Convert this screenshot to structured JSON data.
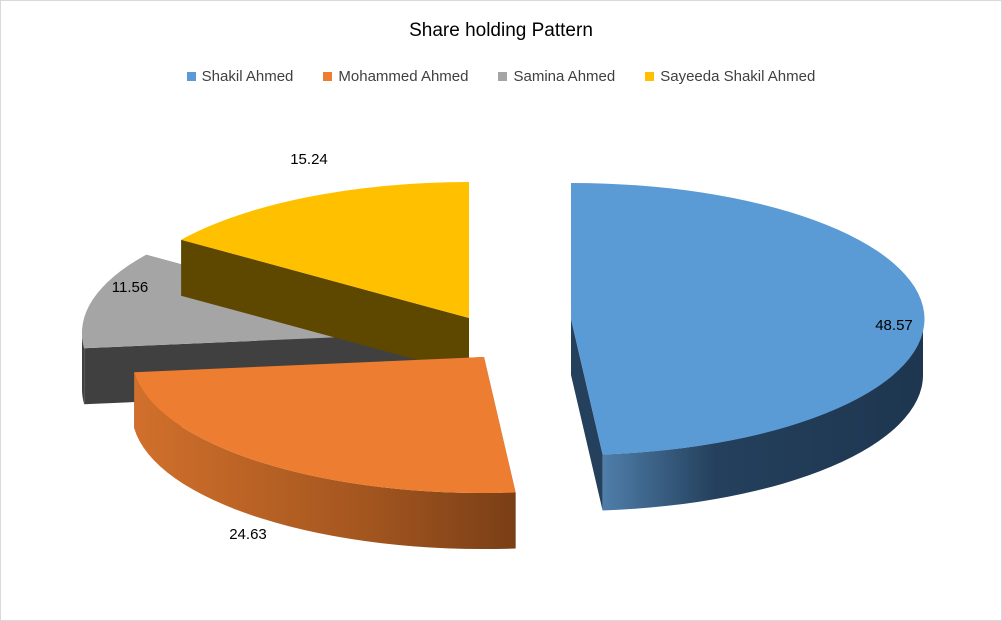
{
  "chart_data": {
    "type": "pie",
    "title": "Share holding Pattern",
    "categories": [
      "Shakil Ahmed",
      "Mohammed Ahmed",
      "Samina Ahmed",
      "Sayeeda Shakil Ahmed"
    ],
    "values": [
      48.57,
      24.63,
      11.56,
      15.24
    ],
    "data_labels": [
      "48.57",
      "24.63",
      "11.56",
      "15.24"
    ],
    "colors": [
      "#5B9BD5",
      "#ED7D31",
      "#A5A5A5",
      "#FFC000"
    ],
    "side_colors": [
      "#24405C",
      "#8B4A1D",
      "#404040",
      "#5E4800"
    ],
    "legend_position": "top",
    "exploded": true,
    "three_d": true
  }
}
